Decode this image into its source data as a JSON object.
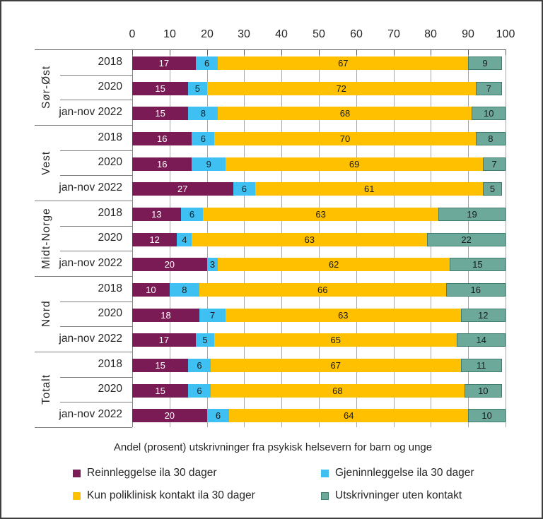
{
  "chart_data": {
    "type": "bar",
    "stacked": true,
    "orientation": "horizontal",
    "caption": "Andel (prosent) utskrivninger fra psykisk helsevern for barn og unge",
    "x_axis": {
      "position": "top",
      "range": [
        0,
        100
      ],
      "ticks": [
        0,
        10,
        20,
        30,
        40,
        50,
        60,
        70,
        80,
        90,
        100
      ]
    },
    "grid": "vertical-on",
    "series": [
      {
        "name": "Reinnleggelse ila 30 dager",
        "color": "#7B1B56",
        "label_color": "#FFFFFF"
      },
      {
        "name": "Gjeninnleggelse ila 30 dager",
        "color": "#3EC1F2",
        "label_color": "#1A1A1A"
      },
      {
        "name": "Kun poliklinisk kontakt ila 30 dager",
        "color": "#FFC000",
        "label_color": "#1A1A1A"
      },
      {
        "name": "Utskrivninger uten kontakt",
        "color": "#6CA99A",
        "border_color": "#3F7D6E",
        "label_color": "#1A1A1A"
      }
    ],
    "groups": [
      {
        "label": "Sør-Øst",
        "rows": [
          {
            "label": "2018",
            "values": [
              17,
              6,
              67,
              9
            ]
          },
          {
            "label": "2020",
            "values": [
              15,
              5,
              72,
              7
            ]
          },
          {
            "label": "jan-nov 2022",
            "values": [
              15,
              8,
              68,
              10
            ]
          }
        ]
      },
      {
        "label": "Vest",
        "rows": [
          {
            "label": "2018",
            "values": [
              16,
              6,
              70,
              8
            ]
          },
          {
            "label": "2020",
            "values": [
              16,
              9,
              69,
              7
            ]
          },
          {
            "label": "jan-nov 2022",
            "values": [
              27,
              6,
              61,
              5
            ]
          }
        ]
      },
      {
        "label": "Midt-Norge",
        "rows": [
          {
            "label": "2018",
            "values": [
              13,
              6,
              63,
              19
            ]
          },
          {
            "label": "2020",
            "values": [
              12,
              4,
              63,
              22
            ]
          },
          {
            "label": "jan-nov 2022",
            "values": [
              20,
              3,
              62,
              15
            ]
          }
        ]
      },
      {
        "label": "Nord",
        "rows": [
          {
            "label": "2018",
            "values": [
              10,
              8,
              66,
              16
            ]
          },
          {
            "label": "2020",
            "values": [
              18,
              7,
              63,
              12
            ]
          },
          {
            "label": "jan-nov 2022",
            "values": [
              17,
              5,
              65,
              14
            ]
          }
        ]
      },
      {
        "label": "Totalt",
        "rows": [
          {
            "label": "2018",
            "values": [
              15,
              6,
              67,
              11
            ]
          },
          {
            "label": "2020",
            "values": [
              15,
              6,
              68,
              10
            ]
          },
          {
            "label": "jan-nov 2022",
            "values": [
              20,
              6,
              64,
              10
            ]
          }
        ]
      }
    ],
    "colors": {
      "gridline": "#A6A6A6",
      "axis_line": "#595959",
      "separator": "#808080",
      "text": "#262626"
    }
  },
  "legend": {
    "items": [
      {
        "label": "Reinnleggelse ila 30 dager",
        "series_index": 0
      },
      {
        "label": "Gjeninnleggelse ila 30 dager",
        "series_index": 1
      },
      {
        "label": "Kun poliklinisk kontakt ila 30 dager",
        "series_index": 2
      },
      {
        "label": "Utskrivninger uten kontakt",
        "series_index": 3
      }
    ]
  }
}
